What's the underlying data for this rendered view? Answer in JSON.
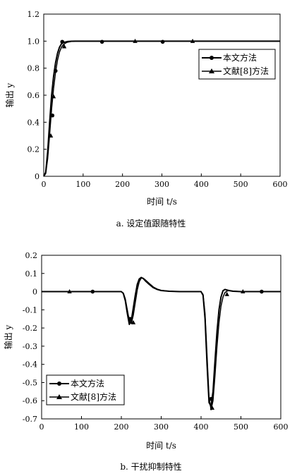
{
  "chart_data": [
    {
      "type": "line",
      "caption": "a. 设定值跟随特性",
      "xlabel": "时间 t/s",
      "ylabel": "输出 y",
      "xlim": [
        0,
        600
      ],
      "ylim": [
        0,
        1.2
      ],
      "xticks": [
        0,
        100,
        200,
        300,
        400,
        500,
        600
      ],
      "yticks": [
        0,
        0.2,
        0.4,
        0.6,
        0.8,
        1.0,
        1.2
      ],
      "ytick_labels": [
        "0",
        "0.2",
        "0.4",
        "0.6",
        "0.8",
        "1.0",
        "1.2"
      ],
      "legend_position": "right",
      "series": [
        {
          "name": "本文方法",
          "marker": "circle",
          "x": [
            0,
            5,
            10,
            15,
            20,
            25,
            30,
            35,
            40,
            45,
            50,
            60,
            70,
            80,
            100,
            150,
            200,
            250,
            300,
            350,
            400,
            450,
            500,
            600
          ],
          "y": [
            0,
            0.03,
            0.18,
            0.4,
            0.6,
            0.74,
            0.84,
            0.91,
            0.955,
            0.98,
            0.99,
            0.997,
            0.999,
            1.0,
            1.0,
            1.0,
            1.0,
            1.0,
            1.0,
            1.0,
            1.0,
            1.0,
            1.0,
            1.0
          ],
          "marker_points": [
            [
              22,
              0.45
            ],
            [
              30,
              0.78
            ],
            [
              47,
              0.995
            ],
            [
              148,
              0.995
            ],
            [
              302,
              0.995
            ]
          ]
        },
        {
          "name": "文献[8]方法",
          "marker": "triangle",
          "x": [
            0,
            5,
            10,
            15,
            20,
            25,
            30,
            35,
            40,
            45,
            50,
            55,
            60,
            70,
            80,
            100,
            150,
            200,
            250,
            300,
            350,
            400,
            450,
            500,
            600
          ],
          "y": [
            0,
            0.02,
            0.13,
            0.31,
            0.5,
            0.65,
            0.77,
            0.86,
            0.92,
            0.955,
            0.975,
            0.985,
            0.992,
            0.998,
            1.0,
            1.0,
            1.0,
            1.0,
            1.0,
            1.0,
            1.0,
            1.0,
            1.0,
            1.0,
            1.0
          ],
          "marker_points": [
            [
              18,
              0.3
            ],
            [
              25,
              0.59
            ],
            [
              52,
              0.96
            ],
            [
              232,
              1.0
            ],
            [
              378,
              1.0
            ]
          ]
        }
      ]
    },
    {
      "type": "line",
      "caption": "b. 干扰抑制特性",
      "xlabel": "时间 t/s",
      "ylabel": "输出 y",
      "xlim": [
        0,
        600
      ],
      "ylim": [
        -0.7,
        0.2
      ],
      "xticks": [
        0,
        100,
        200,
        300,
        400,
        500,
        600
      ],
      "yticks": [
        0.2,
        0.1,
        0,
        -0.1,
        -0.2,
        -0.3,
        -0.4,
        -0.5,
        -0.6,
        -0.7
      ],
      "ytick_labels": [
        "0.2",
        "0.1",
        "0",
        "-0.1",
        "-0.2",
        "-0.3",
        "-0.4",
        "-0.5",
        "-0.6",
        "-0.7"
      ],
      "legend_position": "bottom-left",
      "series": [
        {
          "name": "本文方法",
          "marker": "circle",
          "x": [
            0,
            100,
            200,
            205,
            210,
            215,
            220,
            225,
            230,
            235,
            240,
            245,
            250,
            255,
            260,
            270,
            280,
            290,
            300,
            320,
            350,
            400,
            405,
            410,
            415,
            420,
            425,
            430,
            435,
            440,
            445,
            450,
            455,
            460,
            470,
            480,
            500,
            600
          ],
          "y": [
            0,
            0,
            0,
            -0.01,
            -0.05,
            -0.12,
            -0.18,
            -0.16,
            -0.09,
            -0.02,
            0.04,
            0.07,
            0.078,
            0.072,
            0.06,
            0.04,
            0.022,
            0.012,
            0.006,
            0.002,
            0,
            0,
            -0.02,
            -0.15,
            -0.4,
            -0.61,
            -0.63,
            -0.55,
            -0.38,
            -0.22,
            -0.1,
            -0.03,
            0.005,
            0.012,
            0.006,
            0.002,
            0,
            0
          ],
          "marker_points": [
            [
              128,
              0
            ],
            [
              222,
              -0.15
            ],
            [
              425,
              -0.59
            ],
            [
              552,
              0
            ]
          ]
        },
        {
          "name": "文献[8]方法",
          "marker": "triangle",
          "x": [
            0,
            100,
            200,
            205,
            210,
            215,
            220,
            225,
            230,
            235,
            240,
            245,
            250,
            255,
            260,
            270,
            280,
            290,
            300,
            320,
            350,
            400,
            405,
            410,
            415,
            420,
            425,
            430,
            435,
            440,
            445,
            450,
            455,
            460,
            465,
            470,
            480,
            500,
            600
          ],
          "y": [
            0,
            0,
            0,
            -0.008,
            -0.04,
            -0.1,
            -0.16,
            -0.175,
            -0.13,
            -0.06,
            0.01,
            0.055,
            0.075,
            0.074,
            0.065,
            0.045,
            0.026,
            0.014,
            0.007,
            0.002,
            0,
            0,
            -0.015,
            -0.12,
            -0.35,
            -0.58,
            -0.65,
            -0.6,
            -0.46,
            -0.3,
            -0.17,
            -0.08,
            -0.03,
            -0.005,
            0.003,
            0.006,
            0.003,
            0,
            0
          ],
          "marker_points": [
            [
              70,
              0
            ],
            [
              230,
              -0.17
            ],
            [
              428,
              -0.64
            ],
            [
              465,
              -0.015
            ],
            [
              505,
              0
            ]
          ]
        }
      ]
    }
  ]
}
